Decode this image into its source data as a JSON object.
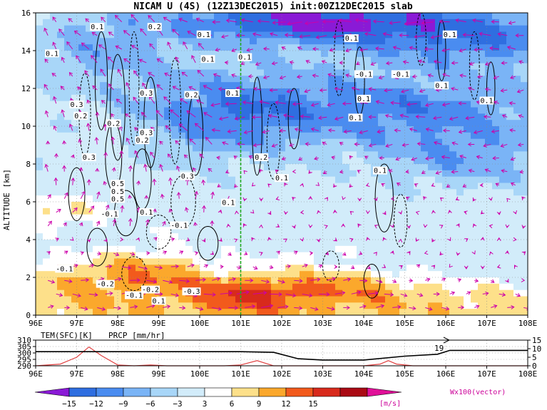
{
  "title": "NICAM U (4S) (12Z13DEC2015) init:00Z12DEC2015 slab",
  "colors": {
    "vector": "#cc00aa",
    "divider": "#22aa22",
    "precip_line": "#e04040",
    "temp_line": "#000000"
  },
  "chart_data": [
    {
      "type": "heatmap",
      "title": "NICAM U (4S) (12Z13DEC2015) init:00Z12DEC2015 slab",
      "xlabel": "",
      "ylabel": "ALTITUDE [km]",
      "x_ticks": [
        "96E",
        "97E",
        "98E",
        "99E",
        "100E",
        "101E",
        "102E",
        "103E",
        "104E",
        "105E",
        "106E",
        "107E",
        "108E"
      ],
      "x_range": [
        96,
        108
      ],
      "y_ticks": [
        "0",
        "2",
        "4",
        "6",
        "8",
        "10",
        "12",
        "14",
        "16"
      ],
      "y_range": [
        0,
        16
      ],
      "grid": true,
      "divider_lon": 101,
      "colorbar": {
        "units": "[m/s]",
        "levels": [
          -15,
          -12,
          -9,
          -6,
          -3,
          3,
          6,
          9,
          12,
          15
        ],
        "tick_labels": [
          "−15",
          "−12",
          "−9",
          "−6",
          "−3",
          "3",
          "6",
          "9",
          "12",
          "15"
        ],
        "colors": [
          "#8a1ad6",
          "#2f6ee0",
          "#4a8cf0",
          "#7ab4f6",
          "#a8d6f8",
          "#d2ecfa",
          "#ffffff",
          "#fde08a",
          "#fba82c",
          "#f25a1c",
          "#d82a1c",
          "#aa0a14",
          "#e01098"
        ]
      },
      "vector_label": "Wx100(vector)",
      "contour_labels": [
        "0.1",
        "0.2",
        "0.3",
        "0.5",
        "-0.1",
        "-0.2",
        "-0.3"
      ]
    },
    {
      "type": "line",
      "series": [
        {
          "name": "TEM(SFC)[K]",
          "axis": "left",
          "x": [
            96,
            98,
            100,
            101,
            101.8,
            102.4,
            103,
            104,
            105,
            105.8,
            106.1,
            106.5,
            108
          ],
          "values": [
            301,
            301,
            301,
            301,
            300.5,
            295.5,
            294.5,
            294.5,
            297.5,
            299,
            302,
            302,
            302
          ]
        },
        {
          "name": "PRCP [mm/hr]",
          "axis": "right",
          "x": [
            96,
            96.6,
            97,
            97.3,
            97.6,
            98,
            98.4,
            98.8,
            99.2,
            100,
            100.6,
            101,
            101.4,
            101.8,
            102.2,
            103,
            104,
            104.4,
            104.6,
            104.8,
            105.2,
            106,
            108
          ],
          "values": [
            0,
            1,
            5,
            11,
            6,
            0.5,
            0,
            0.5,
            0,
            0,
            0,
            0.5,
            3,
            0,
            0,
            0,
            0,
            1,
            3,
            1,
            0,
            0,
            0
          ]
        }
      ],
      "x_ticks": [
        "96E",
        "97E",
        "98E",
        "99E",
        "100E",
        "101E",
        "102E",
        "103E",
        "104E",
        "105E",
        "106E",
        "107E",
        "108E"
      ],
      "left_ticks": [
        "310",
        "305",
        "300",
        "295",
        "290"
      ],
      "left_range": [
        290,
        310
      ],
      "right_ticks": [
        "15",
        "10",
        "5",
        "0"
      ],
      "right_range": [
        0,
        15
      ],
      "annotation": "19"
    }
  ]
}
